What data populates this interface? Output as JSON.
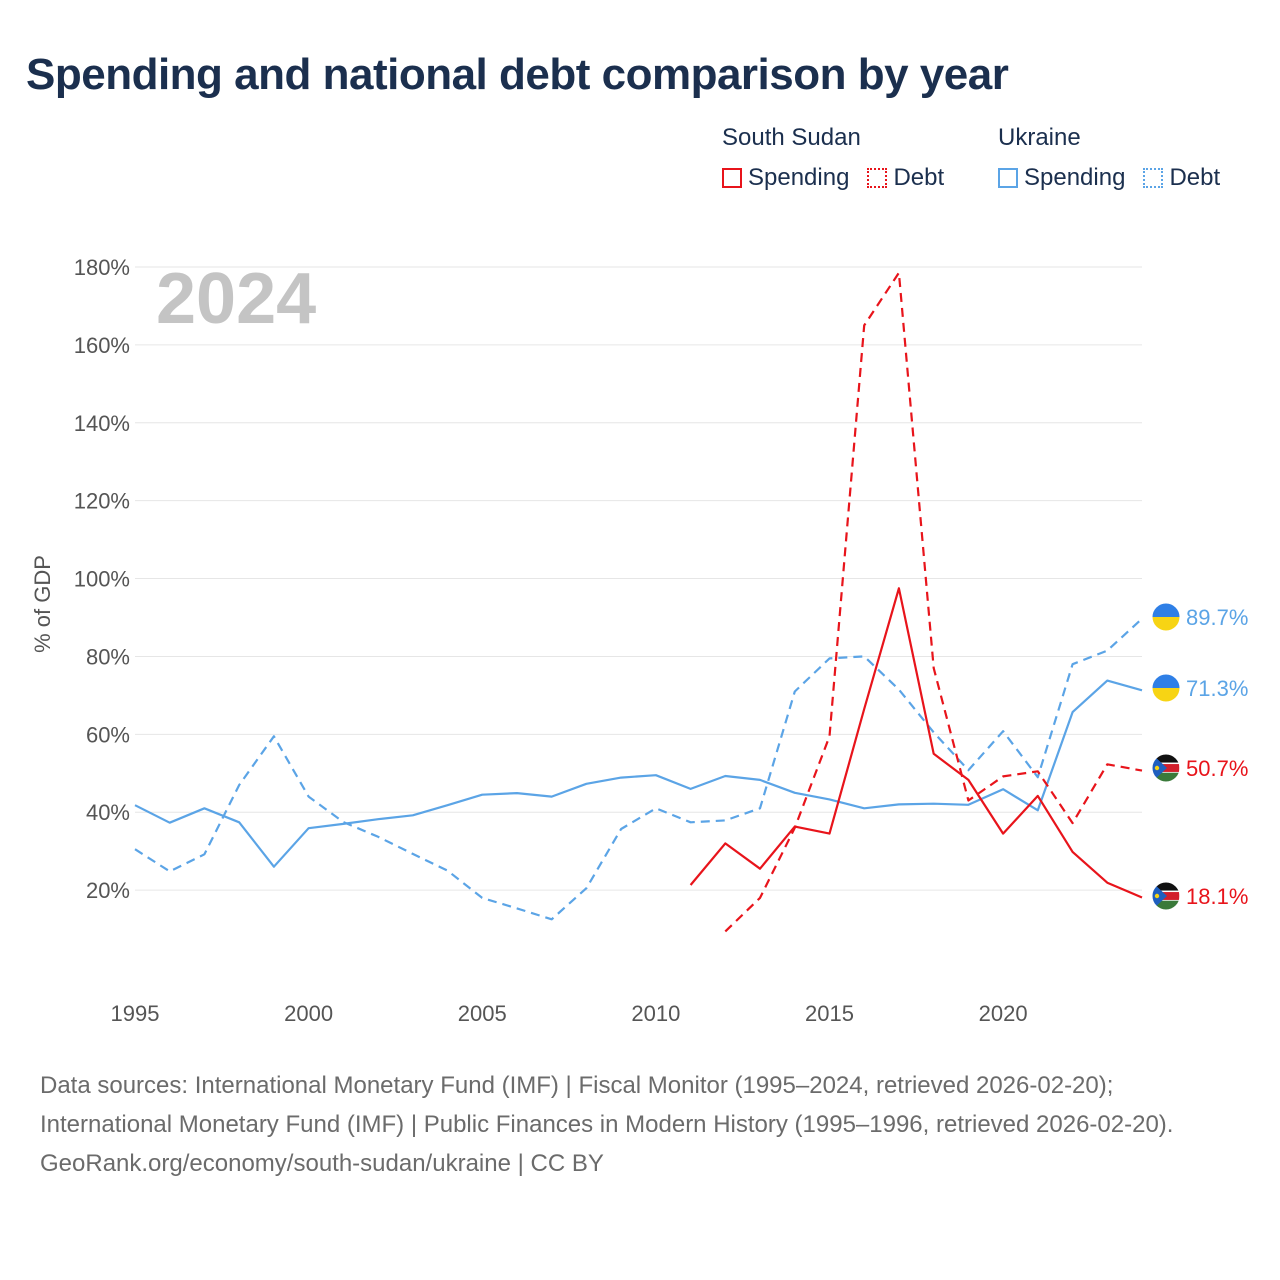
{
  "title": "Spending and national debt comparison by year",
  "legend": {
    "south_sudan": {
      "name": "South Sudan",
      "spending": "Spending",
      "debt": "Debt"
    },
    "ukraine": {
      "name": "Ukraine",
      "spending": "Spending",
      "debt": "Debt"
    }
  },
  "colors": {
    "south_sudan": "#e8141b",
    "ukraine": "#5ba4e6",
    "year_label": "#c4c4c4"
  },
  "footer": {
    "sources": "Data sources: International Monetary Fund (IMF) | Fiscal Monitor (1995–2024, retrieved 2026-02-20); International Monetary Fund (IMF) | Public Finances in Modern History (1995–1996, retrieved 2026-02-20).",
    "credit": "GeoRank.org/economy/south-sudan/ukraine | CC BY"
  },
  "chart_data": {
    "type": "line",
    "year_label": "2024",
    "ylabel": "% of GDP",
    "xlim": [
      1995,
      2024
    ],
    "ylim": [
      0,
      180
    ],
    "xticks": [
      1995,
      2000,
      2005,
      2010,
      2015,
      2020
    ],
    "yticks": [
      20,
      40,
      60,
      80,
      100,
      120,
      140,
      160,
      180
    ],
    "ytick_labels": [
      "20%",
      "40%",
      "60%",
      "80%",
      "100%",
      "120%",
      "140%",
      "160%",
      "180%"
    ],
    "series": [
      {
        "name": "Ukraine Debt",
        "country": "Ukraine",
        "kind": "debt",
        "style": "dashed",
        "x": [
          1995,
          1996,
          1997,
          1998,
          1999,
          2000,
          2001,
          2002,
          2003,
          2004,
          2005,
          2006,
          2007,
          2008,
          2009,
          2010,
          2011,
          2012,
          2013,
          2014,
          2015,
          2016,
          2017,
          2018,
          2019,
          2020,
          2021,
          2022,
          2023,
          2024
        ],
        "values": [
          30.5,
          24.8,
          29.2,
          47,
          59.5,
          44,
          37.5,
          33.7,
          29.3,
          25,
          18,
          15.3,
          12.5,
          20.5,
          35.7,
          41,
          37.4,
          37.9,
          41,
          71,
          79.5,
          80,
          71.5,
          60.5,
          50.8,
          60.8,
          49,
          78,
          81.5,
          89.7
        ],
        "end_label": "89.7%"
      },
      {
        "name": "Ukraine Spending",
        "country": "Ukraine",
        "kind": "spending",
        "style": "solid",
        "x": [
          1995,
          1996,
          1997,
          1998,
          1999,
          2000,
          2001,
          2002,
          2003,
          2004,
          2005,
          2006,
          2007,
          2008,
          2009,
          2010,
          2011,
          2012,
          2013,
          2014,
          2015,
          2016,
          2017,
          2018,
          2019,
          2020,
          2021,
          2022,
          2023,
          2024
        ],
        "values": [
          41.8,
          37.3,
          41,
          37.4,
          26,
          35.9,
          37,
          38.2,
          39.2,
          41.8,
          44.5,
          44.9,
          44,
          47.3,
          48.9,
          49.5,
          46,
          49.3,
          48.3,
          45,
          43.3,
          41,
          42,
          42.2,
          41.9,
          45.9,
          40.5,
          65.7,
          73.8,
          71.3
        ],
        "end_label": "71.3%"
      },
      {
        "name": "South Sudan Debt",
        "country": "South Sudan",
        "kind": "debt",
        "style": "dashed",
        "x": [
          2012,
          2013,
          2014,
          2015,
          2016,
          2017,
          2018,
          2019,
          2020,
          2021,
          2022,
          2023,
          2024
        ],
        "values": [
          9.4,
          18,
          36,
          59.5,
          165,
          178.5,
          77,
          43,
          49.2,
          50.5,
          37.2,
          52.3,
          50.7
        ],
        "end_label": "50.7%"
      },
      {
        "name": "South Sudan Spending",
        "country": "South Sudan",
        "kind": "spending",
        "style": "solid",
        "x": [
          2011,
          2012,
          2013,
          2014,
          2015,
          2016,
          2017,
          2018,
          2019,
          2020,
          2021,
          2022,
          2023,
          2024
        ],
        "values": [
          21.3,
          32,
          25.5,
          36.3,
          34.5,
          66.5,
          97.5,
          55,
          48.3,
          34.5,
          44.2,
          29.8,
          21.9,
          18.1
        ],
        "end_label": "18.1%"
      }
    ]
  }
}
